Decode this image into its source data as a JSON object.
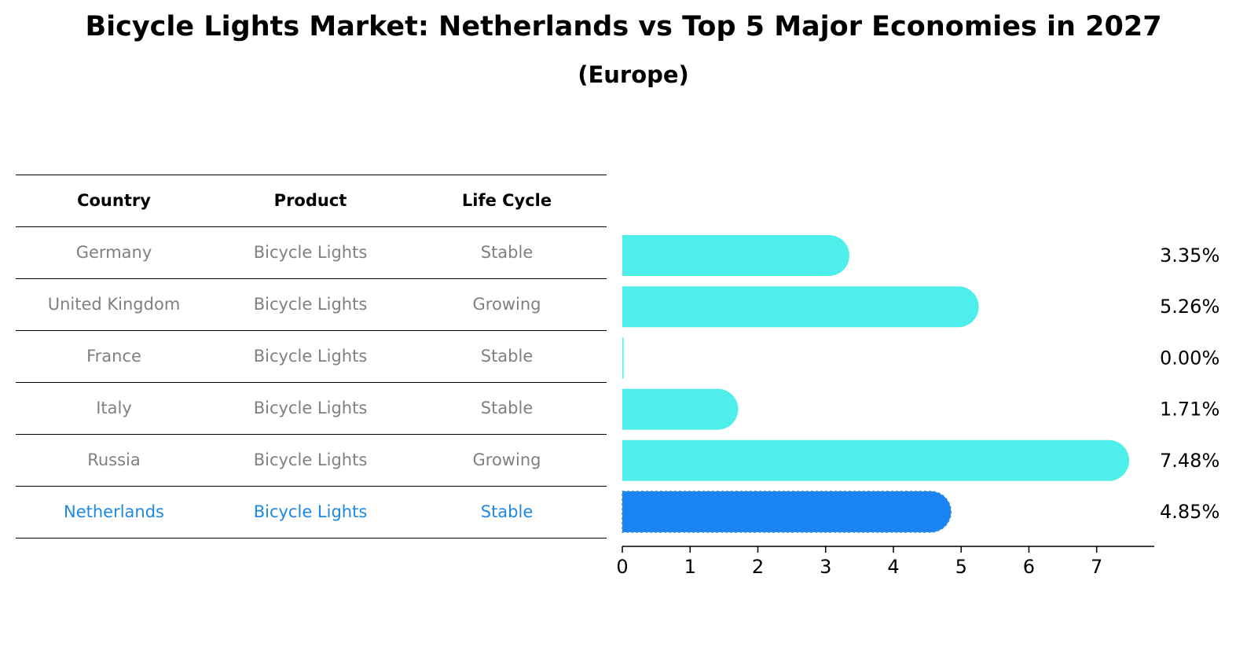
{
  "title": "Bicycle Lights Market: Netherlands vs Top 5 Major Economies in 2027",
  "subtitle": "(Europe)",
  "table": {
    "headers": [
      "Country",
      "Product",
      "Life Cycle"
    ],
    "rows": [
      [
        "Germany",
        "Bicycle Lights",
        "Stable"
      ],
      [
        "United Kingdom",
        "Bicycle Lights",
        "Growing"
      ],
      [
        "France",
        "Bicycle Lights",
        "Stable"
      ],
      [
        "Italy",
        "Bicycle Lights",
        "Stable"
      ],
      [
        "Russia",
        "Bicycle Lights",
        "Growing"
      ],
      [
        "Netherlands",
        "Bicycle Lights",
        "Stable"
      ]
    ]
  },
  "chart_data": {
    "type": "bar",
    "orientation": "horizontal",
    "categories": [
      "Germany",
      "United Kingdom",
      "France",
      "Italy",
      "Russia",
      "Netherlands"
    ],
    "values": [
      3.35,
      5.26,
      0.0,
      1.71,
      7.48,
      4.85
    ],
    "value_labels": [
      "3.35%",
      "5.26%",
      "0.00%",
      "1.71%",
      "7.48%",
      "4.85%"
    ],
    "highlight": "Netherlands",
    "xlim": [
      0,
      7.85
    ],
    "xticks": [
      0,
      1,
      2,
      3,
      4,
      5,
      6,
      7
    ],
    "grid": false,
    "colors": {
      "bar": "#4eeeea",
      "highlight_bar": "#1a84f5",
      "highlight_text": "#1e88e5",
      "muted_text": "#808080"
    }
  }
}
